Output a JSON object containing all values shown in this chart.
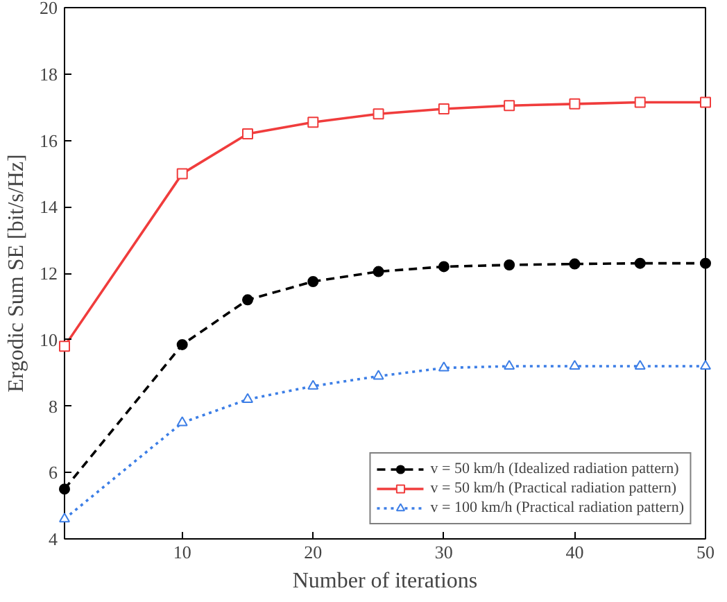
{
  "chart_data": {
    "type": "line",
    "xlabel": "Number of iterations",
    "ylabel": "Ergodic Sum SE [bit/s/Hz]",
    "x": [
      1,
      10,
      15,
      20,
      25,
      30,
      35,
      40,
      45,
      50
    ],
    "series": [
      {
        "name": "v = 50 km/h (Idealized radiation pattern)",
        "color": "#000000",
        "marker": "circle",
        "line_style": "dashed",
        "values": [
          5.5,
          9.85,
          11.2,
          11.75,
          12.05,
          12.2,
          12.25,
          12.28,
          12.3,
          12.3
        ]
      },
      {
        "name": "v = 50 km/h (Practical radiation pattern)",
        "color": "#f03c3c",
        "marker": "square",
        "line_style": "solid",
        "values": [
          9.8,
          15.0,
          16.2,
          16.55,
          16.8,
          16.95,
          17.05,
          17.1,
          17.15,
          17.15
        ]
      },
      {
        "name": "v = 100 km/h (Practical radiation pattern)",
        "color": "#3c7ee6",
        "marker": "triangle",
        "line_style": "dotted",
        "values": [
          4.6,
          7.5,
          8.2,
          8.6,
          8.9,
          9.15,
          9.2,
          9.2,
          9.2,
          9.2
        ]
      }
    ],
    "xlim": [
      1,
      50
    ],
    "xticks": [
      10,
      20,
      30,
      40,
      50
    ],
    "ylim": [
      4,
      20
    ],
    "yticks": [
      4,
      6,
      8,
      10,
      12,
      14,
      16,
      18,
      20
    ],
    "grid": false,
    "legend": "bottom right"
  }
}
